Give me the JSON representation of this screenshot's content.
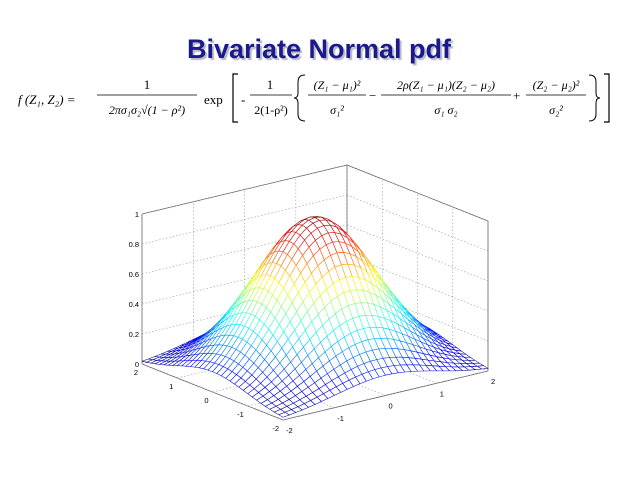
{
  "slide": {
    "title": "Bivariate  Normal pdf"
  },
  "formula": {
    "lhs": "f (Z₁, Z₂)  =",
    "coef_numerator": "1",
    "coef_denominator": "2πσ₁σ₂√(1 − ρ²)",
    "exp_label": "exp",
    "minus_sign": "-",
    "exp_frac_numerator": "1",
    "exp_frac_denominator": "2(1-ρ²)",
    "term1_numerator": "(Z₁ − μ₁)²",
    "term1_denominator": "σ₁²",
    "op1": "−",
    "term2_numerator": "2ρ(Z₁ − μ₁)(Z₂ − μ₂)",
    "term2_denominator": "σ₁ σ₂",
    "op2": "+",
    "term3_numerator": "(Z₂ − μ₂)²",
    "term3_denominator": "σ₂²"
  },
  "chart_data": {
    "type": "surface",
    "function": "bivariate normal pdf surface (peak normalized to 1)",
    "x_range": [
      -2,
      2
    ],
    "y_range": [
      -2,
      2
    ],
    "z_range": [
      0,
      1
    ],
    "grid_points": 33,
    "peak": {
      "x": 0,
      "y": 0,
      "z": 1
    },
    "z_ticks": [
      "0",
      "0.2",
      "0.4",
      "0.6",
      "0.8",
      "1"
    ],
    "left_axis_ticks": [
      "2",
      "1",
      "0",
      "-1",
      "-2"
    ],
    "right_axis_ticks": [
      "-2",
      "-1",
      "0",
      "1",
      "2"
    ],
    "colormap": "jet",
    "grid": true
  }
}
